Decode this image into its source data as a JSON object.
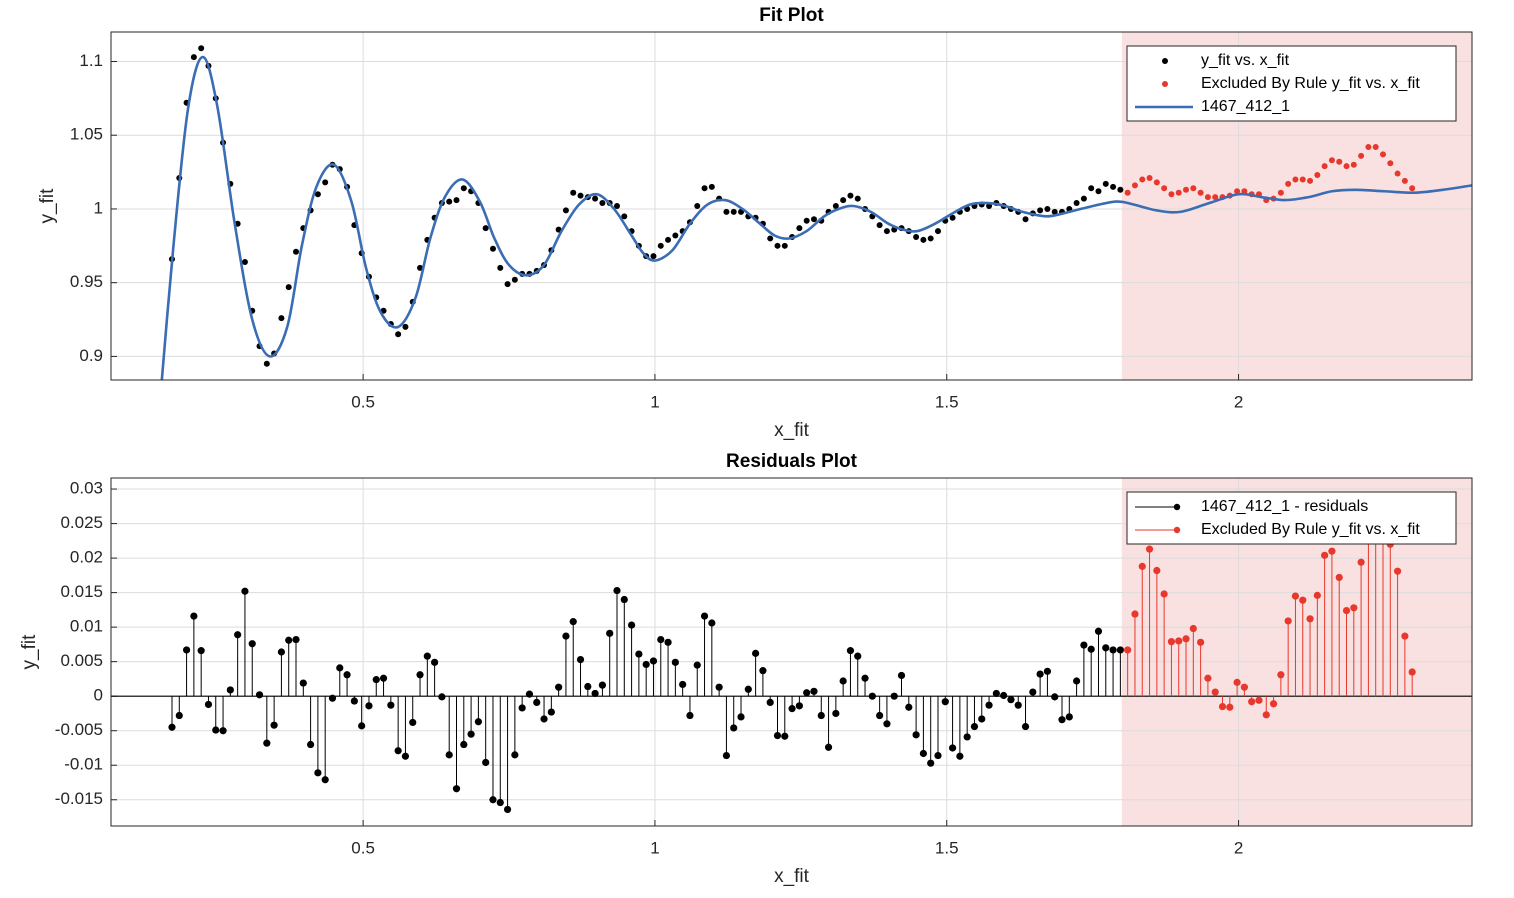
{
  "chart_data": [
    {
      "type": "scatter",
      "title": "Fit Plot",
      "x_label": "x_fit",
      "y_label": "y_fit",
      "xlim": [
        0.068,
        2.4
      ],
      "ylim": [
        0.884,
        1.12
      ],
      "xticks": [
        0.5,
        1,
        1.5,
        2
      ],
      "yticks": [
        0.9,
        0.95,
        1,
        1.05,
        1.1
      ],
      "grid": true,
      "legend": "northeast",
      "shaded_region": {
        "xlim": [
          1.8,
          2.4
        ],
        "color": "#f8e1e0"
      },
      "series": [
        {
          "name": "y_fit vs. x_fit",
          "color": "#000000",
          "style": "markers",
          "x": [
            0.1725,
            0.185,
            0.1975,
            0.21,
            0.2225,
            0.235,
            0.2475,
            0.26,
            0.2725,
            0.285,
            0.2975,
            0.31,
            0.3225,
            0.335,
            0.3475,
            0.36,
            0.3725,
            0.385,
            0.3975,
            0.41,
            0.4225,
            0.435,
            0.4475,
            0.46,
            0.4725,
            0.485,
            0.4975,
            0.51,
            0.5225,
            0.535,
            0.5475,
            0.56,
            0.5725,
            0.585,
            0.5975,
            0.61,
            0.6225,
            0.635,
            0.6475,
            0.66,
            0.6725,
            0.685,
            0.6975,
            0.71,
            0.7225,
            0.735,
            0.7475,
            0.76,
            0.7725,
            0.785,
            0.7975,
            0.81,
            0.8225,
            0.835,
            0.8475,
            0.86,
            0.8725,
            0.885,
            0.8975,
            0.91,
            0.9225,
            0.935,
            0.9475,
            0.96,
            0.9725,
            0.985,
            0.9975,
            1.01,
            1.0225,
            1.035,
            1.0475,
            1.06,
            1.0725,
            1.085,
            1.0975,
            1.11,
            1.1225,
            1.135,
            1.1475,
            1.16,
            1.1725,
            1.185,
            1.1975,
            1.21,
            1.2225,
            1.235,
            1.2475,
            1.26,
            1.2725,
            1.285,
            1.2975,
            1.31,
            1.3225,
            1.335,
            1.3475,
            1.36,
            1.3725,
            1.385,
            1.3975,
            1.41,
            1.4225,
            1.435,
            1.4475,
            1.46,
            1.4725,
            1.485,
            1.4975,
            1.51,
            1.5225,
            1.535,
            1.5475,
            1.56,
            1.5725,
            1.585,
            1.5975,
            1.61,
            1.6225,
            1.635,
            1.6475,
            1.66,
            1.6725,
            1.685,
            1.6975,
            1.71,
            1.7225,
            1.735,
            1.7475,
            1.76,
            1.7725,
            1.785,
            1.7975
          ],
          "values": [
            0.966,
            1.021,
            1.072,
            1.103,
            1.109,
            1.097,
            1.075,
            1.045,
            1.017,
            0.99,
            0.964,
            0.931,
            0.907,
            0.895,
            0.902,
            0.926,
            0.947,
            0.971,
            0.987,
            0.999,
            1.01,
            1.018,
            1.03,
            1.027,
            1.015,
            0.989,
            0.97,
            0.954,
            0.94,
            0.931,
            0.922,
            0.915,
            0.92,
            0.937,
            0.96,
            0.979,
            0.994,
            1.004,
            1.005,
            1.006,
            1.014,
            1.012,
            1.004,
            0.987,
            0.973,
            0.96,
            0.949,
            0.952,
            0.956,
            0.956,
            0.958,
            0.962,
            0.972,
            0.986,
            0.999,
            1.011,
            1.009,
            1.008,
            1.007,
            1.004,
            1.004,
            1.002,
            0.995,
            0.985,
            0.975,
            0.968,
            0.968,
            0.975,
            0.979,
            0.982,
            0.985,
            0.991,
            1.002,
            1.014,
            1.015,
            1.007,
            0.998,
            0.998,
            0.998,
            0.995,
            0.994,
            0.99,
            0.98,
            0.975,
            0.975,
            0.981,
            0.987,
            0.992,
            0.993,
            0.992,
            0.998,
            1.002,
            1.006,
            1.009,
            1.007,
            1.0,
            0.995,
            0.989,
            0.985,
            0.986,
            0.987,
            0.985,
            0.981,
            0.979,
            0.98,
            0.985,
            0.992,
            0.994,
            0.998,
            1.0,
            1.002,
            1.003,
            1.002,
            1.004,
            1.002,
            1.0,
            0.998,
            0.993,
            0.997,
            0.999,
            1.0,
            0.998,
            0.998,
            1.0,
            1.004,
            1.007,
            1.014,
            1.012,
            1.017,
            1.015,
            1.013
          ]
        },
        {
          "name": "Excluded By Rule y_fit vs. x_fit",
          "color": "#e8372c",
          "style": "markers",
          "x": [
            1.81,
            1.8225,
            1.835,
            1.8475,
            1.86,
            1.8725,
            1.885,
            1.8975,
            1.91,
            1.9225,
            1.935,
            1.9475,
            1.96,
            1.9725,
            1.985,
            1.9975,
            2.01,
            2.0225,
            2.035,
            2.0475,
            2.06,
            2.0725,
            2.085,
            2.0975,
            2.11,
            2.1225,
            2.135,
            2.1475,
            2.16,
            2.1725,
            2.185,
            2.1975,
            2.21,
            2.2225,
            2.235,
            2.2475,
            2.26,
            2.2725,
            2.285,
            2.2975
          ],
          "values": [
            1.011,
            1.016,
            1.02,
            1.021,
            1.018,
            1.014,
            1.01,
            1.011,
            1.013,
            1.014,
            1.011,
            1.008,
            1.008,
            1.008,
            1.009,
            1.012,
            1.012,
            1.01,
            1.01,
            1.006,
            1.007,
            1.011,
            1.017,
            1.02,
            1.02,
            1.019,
            1.023,
            1.029,
            1.033,
            1.032,
            1.029,
            1.03,
            1.036,
            1.042,
            1.042,
            1.037,
            1.031,
            1.024,
            1.019,
            1.014
          ]
        },
        {
          "name": "1467_412_1",
          "color": "#3a6db3",
          "style": "line",
          "x": [
            0.15,
            0.175,
            0.2,
            0.225,
            0.25,
            0.28,
            0.31,
            0.34,
            0.37,
            0.395,
            0.42,
            0.45,
            0.48,
            0.505,
            0.53,
            0.56,
            0.59,
            0.615,
            0.64,
            0.67,
            0.7,
            0.725,
            0.75,
            0.78,
            0.81,
            0.84,
            0.87,
            0.9,
            0.93,
            0.96,
            0.98,
            1.0,
            1.03,
            1.06,
            1.09,
            1.12,
            1.15,
            1.18,
            1.205,
            1.23,
            1.26,
            1.29,
            1.315,
            1.34,
            1.37,
            1.4,
            1.425,
            1.45,
            1.48,
            1.51,
            1.54,
            1.57,
            1.6,
            1.63,
            1.67,
            1.7,
            1.74,
            1.79,
            1.82,
            1.86,
            1.9,
            1.95,
            2.0,
            2.04,
            2.08,
            2.12,
            2.16,
            2.2,
            2.25,
            2.3,
            2.35,
            2.4
          ],
          "values": [
            0.86,
            0.975,
            1.068,
            1.103,
            1.07,
            0.99,
            0.925,
            0.9,
            0.92,
            0.975,
            1.015,
            1.03,
            1.005,
            0.96,
            0.93,
            0.92,
            0.94,
            0.98,
            1.008,
            1.02,
            1.005,
            0.98,
            0.962,
            0.955,
            0.962,
            0.985,
            1.003,
            1.01,
            1.0,
            0.982,
            0.97,
            0.965,
            0.972,
            0.99,
            1.003,
            1.006,
            1.0,
            0.99,
            0.982,
            0.98,
            0.985,
            0.995,
            1.0,
            1.002,
            0.998,
            0.99,
            0.986,
            0.985,
            0.99,
            0.997,
            1.003,
            1.004,
            1.002,
            0.998,
            0.995,
            0.997,
            1.001,
            1.005,
            1.003,
            0.999,
            0.998,
            1.004,
            1.01,
            1.008,
            1.006,
            1.008,
            1.012,
            1.013,
            1.012,
            1.011,
            1.013,
            1.016
          ]
        }
      ]
    },
    {
      "type": "stem",
      "title": "Residuals Plot",
      "x_label": "x_fit",
      "y_label": "y_fit",
      "xlim": [
        0.068,
        2.4
      ],
      "ylim": [
        -0.0188,
        0.0316
      ],
      "xticks": [
        0.5,
        1,
        1.5,
        2
      ],
      "yticks": [
        -0.015,
        -0.01,
        -0.005,
        0,
        0.005,
        0.01,
        0.015,
        0.02,
        0.025,
        0.03
      ],
      "grid": true,
      "legend": "northeast",
      "shaded_region": {
        "xlim": [
          1.8,
          2.4
        ],
        "color": "#f8e1e0"
      },
      "series": [
        {
          "name": "1467_412_1 - residuals",
          "color": "#000000",
          "x": [
            0.1725,
            0.185,
            0.1975,
            0.21,
            0.2225,
            0.235,
            0.2475,
            0.26,
            0.2725,
            0.285,
            0.2975,
            0.31,
            0.3225,
            0.335,
            0.3475,
            0.36,
            0.3725,
            0.385,
            0.3975,
            0.41,
            0.4225,
            0.435,
            0.4475,
            0.46,
            0.4725,
            0.485,
            0.4975,
            0.51,
            0.5225,
            0.535,
            0.5475,
            0.56,
            0.5725,
            0.585,
            0.5975,
            0.61,
            0.6225,
            0.635,
            0.6475,
            0.66,
            0.6725,
            0.685,
            0.6975,
            0.71,
            0.7225,
            0.735,
            0.7475,
            0.76,
            0.7725,
            0.785,
            0.7975,
            0.81,
            0.8225,
            0.835,
            0.8475,
            0.86,
            0.8725,
            0.885,
            0.8975,
            0.91,
            0.9225,
            0.935,
            0.9475,
            0.96,
            0.9725,
            0.985,
            0.9975,
            1.01,
            1.0225,
            1.035,
            1.0475,
            1.06,
            1.0725,
            1.085,
            1.0975,
            1.11,
            1.1225,
            1.135,
            1.1475,
            1.16,
            1.1725,
            1.185,
            1.1975,
            1.21,
            1.2225,
            1.235,
            1.2475,
            1.26,
            1.2725,
            1.285,
            1.2975,
            1.31,
            1.3225,
            1.335,
            1.3475,
            1.36,
            1.3725,
            1.385,
            1.3975,
            1.41,
            1.4225,
            1.435,
            1.4475,
            1.46,
            1.4725,
            1.485,
            1.4975,
            1.51,
            1.5225,
            1.535,
            1.5475,
            1.56,
            1.5725,
            1.585,
            1.5975,
            1.61,
            1.6225,
            1.635,
            1.6475,
            1.66,
            1.6725,
            1.685,
            1.6975,
            1.71,
            1.7225,
            1.735,
            1.7475,
            1.76,
            1.7725,
            1.785,
            1.7975
          ],
          "values": [
            -0.0045,
            -0.0028,
            0.0067,
            0.0116,
            0.0066,
            -0.0012,
            -0.0049,
            -0.005,
            0.0009,
            0.0089,
            0.0152,
            0.0076,
            0.0002,
            -0.0068,
            -0.0042,
            0.0064,
            0.0081,
            0.0082,
            0.0019,
            -0.007,
            -0.0111,
            -0.0121,
            -0.0003,
            0.0041,
            0.0031,
            -0.0007,
            -0.0043,
            -0.0014,
            0.0024,
            0.0026,
            -0.0013,
            -0.0079,
            -0.0087,
            -0.0038,
            0.0031,
            0.0058,
            0.0049,
            -0.0001,
            -0.0085,
            -0.0134,
            -0.007,
            -0.0055,
            -0.0037,
            -0.0096,
            -0.015,
            -0.0154,
            -0.0164,
            -0.0085,
            -0.0017,
            0.0003,
            -0.0009,
            -0.0033,
            -0.0023,
            0.0013,
            0.0087,
            0.0108,
            0.0053,
            0.0014,
            0.0004,
            0.0016,
            0.0091,
            0.0153,
            0.014,
            0.0103,
            0.0061,
            0.0046,
            0.0051,
            0.0082,
            0.0078,
            0.0049,
            0.0017,
            -0.0028,
            0.0045,
            0.0116,
            0.0106,
            0.0013,
            -0.0086,
            -0.0046,
            -0.003,
            0.001,
            0.0062,
            0.0037,
            -0.0009,
            -0.0057,
            -0.0058,
            -0.0018,
            -0.0014,
            0.0005,
            0.0007,
            -0.0028,
            -0.0074,
            -0.0025,
            0.0022,
            0.0066,
            0.0058,
            0.0026,
            0.0,
            -0.0028,
            -0.004,
            0.0,
            0.003,
            -0.0016,
            -0.0056,
            -0.0083,
            -0.0097,
            -0.0086,
            -0.0008,
            -0.0075,
            -0.0087,
            -0.0059,
            -0.0044,
            -0.0033,
            -0.0013,
            0.0004,
            0.0001,
            -0.0005,
            -0.0013,
            -0.0044,
            0.0006,
            0.0032,
            0.0036,
            -0.0001,
            -0.0034,
            -0.003,
            0.0022,
            0.0074,
            0.0068,
            0.0094,
            0.007,
            0.0067,
            0.0067
          ]
        },
        {
          "name": "Excluded By Rule y_fit vs. x_fit",
          "color": "#e8372c",
          "x": [
            1.81,
            1.8225,
            1.835,
            1.8475,
            1.86,
            1.8725,
            1.885,
            1.8975,
            1.91,
            1.9225,
            1.935,
            1.9475,
            1.96,
            1.9725,
            1.985,
            1.9975,
            2.01,
            2.0225,
            2.035,
            2.0475,
            2.06,
            2.0725,
            2.085,
            2.0975,
            2.11,
            2.1225,
            2.135,
            2.1475,
            2.16,
            2.1725,
            2.185,
            2.1975,
            2.21,
            2.2225,
            2.235,
            2.2475,
            2.26,
            2.2725,
            2.285,
            2.2975
          ],
          "values": [
            0.0067,
            0.0119,
            0.0188,
            0.0213,
            0.0182,
            0.0148,
            0.0079,
            0.008,
            0.0083,
            0.0098,
            0.0078,
            0.0026,
            0.0006,
            -0.0015,
            -0.0016,
            0.002,
            0.0013,
            -0.0008,
            -0.0006,
            -0.0027,
            -0.0011,
            0.0031,
            0.0109,
            0.0145,
            0.0139,
            0.0112,
            0.0146,
            0.0204,
            0.021,
            0.0172,
            0.0124,
            0.0128,
            0.0194,
            0.0245,
            0.026,
            0.025,
            0.022,
            0.0181,
            0.0087,
            0.0035
          ]
        }
      ]
    }
  ]
}
